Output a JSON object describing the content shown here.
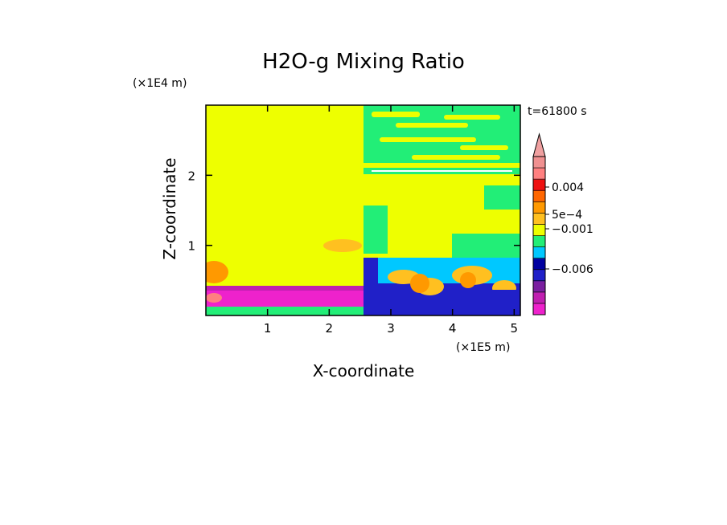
{
  "chart_data": {
    "type": "heatmap",
    "title": "H2O-g Mixing Ratio",
    "xlabel": "X-coordinate",
    "ylabel": "Z-coordinate",
    "x_scale_label": "(×1E5 m)",
    "y_scale_label": "(×1E4 m)",
    "time_label": "t=61800 s",
    "x_range": [
      0,
      5.1
    ],
    "y_range": [
      0,
      3.0
    ],
    "x_ticks": [
      "1",
      "2",
      "3",
      "4",
      "5"
    ],
    "x_tick_values": [
      1,
      2,
      3,
      4,
      5
    ],
    "y_ticks": [
      "1",
      "2"
    ],
    "y_tick_values": [
      1,
      2
    ],
    "colorbar": {
      "extend": "max",
      "labels": [
        "0.004",
        "5e−4",
        "−0.001",
        "−0.006"
      ],
      "colors_bottom_to_top": [
        "#ee22cc",
        "#c01fb0",
        "#7a1fa0",
        "#2020c8",
        "#0000a0",
        "#00c8ff",
        "#22ee77",
        "#eeff00",
        "#ffc020",
        "#ff9900",
        "#ff6600",
        "#ee1111",
        "#ff8080",
        "#f09090"
      ],
      "arrow_color": "#f0a0a0"
    },
    "fields": {
      "background_color": "#eeff00",
      "moist_color": "#22ee77",
      "dry_color": "#2020c8",
      "warm_color": "#ffc020"
    }
  }
}
